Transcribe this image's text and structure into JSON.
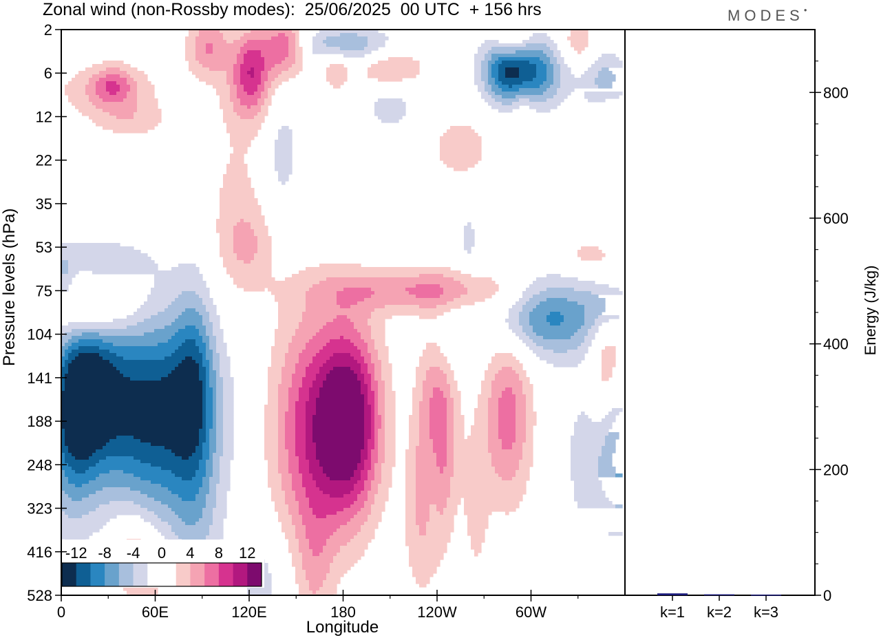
{
  "header": {
    "title": "Zonal wind (non-Rossby modes):  25/06/2025  00 UTC  + 156 hrs",
    "logo": "MODES"
  },
  "chart_data": [
    {
      "type": "heatmap",
      "title": "Zonal wind (non-Rossby modes):  25/06/2025  00 UTC  + 156 hrs",
      "xlabel": "Longitude",
      "ylabel": "Pressure levels (hPa)",
      "x_ticks": [
        "0",
        "60E",
        "120E",
        "180",
        "120W",
        "60W"
      ],
      "x_tick_degrees": [
        0,
        60,
        120,
        180,
        240,
        300
      ],
      "xlim": [
        0,
        360
      ],
      "y_ticks": [
        "2",
        "6",
        "12",
        "22",
        "35",
        "53",
        "75",
        "104",
        "141",
        "188",
        "248",
        "323",
        "416",
        "528"
      ],
      "colorbar": {
        "labels": [
          "-12",
          "-8",
          "-4",
          "0",
          "4",
          "8",
          "12"
        ],
        "levels": [
          -14,
          -12,
          -10,
          -8,
          -6,
          -4,
          -2,
          0,
          2,
          4,
          6,
          8,
          10,
          12,
          14
        ],
        "colors": [
          "#0d2d4f",
          "#0f5f94",
          "#2a86c0",
          "#69a2cc",
          "#a8bfdd",
          "#d3d6e9",
          "#ffffff",
          "#ffffff",
          "#f8cbc9",
          "#f5a3b3",
          "#ed6fa2",
          "#d6338f",
          "#b2187f",
          "#7d0b6e"
        ]
      },
      "features": [
        {
          "kind": "neg",
          "lon": 60,
          "level": 8.8,
          "dlon": 26,
          "dlev": 1.6,
          "amp": 13
        },
        {
          "kind": "neg",
          "lon": 18,
          "level": 8.3,
          "dlon": 15,
          "dlev": 1.3,
          "amp": 11
        },
        {
          "kind": "neg",
          "lon": 6,
          "level": 9.2,
          "dlon": 11,
          "dlev": 1.5,
          "amp": 7
        },
        {
          "kind": "neg",
          "lon": 85,
          "level": 8.0,
          "dlon": 9,
          "dlev": 1.5,
          "amp": 6
        },
        {
          "kind": "neg",
          "lon": 85,
          "level": 11.5,
          "dlon": 12,
          "dlev": 1.6,
          "amp": 3.5
        },
        {
          "kind": "neg",
          "lon": 128,
          "level": 12.7,
          "dlon": 12,
          "dlev": 0.9,
          "amp": 3
        },
        {
          "kind": "neg",
          "lon": 313,
          "level": 6.6,
          "dlon": 25,
          "dlev": 0.65,
          "amp": 8.5
        },
        {
          "kind": "neg",
          "lon": 350,
          "level": 6.3,
          "dlon": 10,
          "dlev": 0.4,
          "amp": 4
        },
        {
          "kind": "neg",
          "lon": 358,
          "level": 9.4,
          "dlon": 9,
          "dlev": 1.3,
          "amp": 7
        },
        {
          "kind": "neg",
          "lon": 297,
          "level": 1.0,
          "dlon": 16,
          "dlev": 0.55,
          "amp": 11
        },
        {
          "kind": "neg",
          "lon": 282,
          "level": 0.9,
          "dlon": 10,
          "dlev": 0.5,
          "amp": 5
        },
        {
          "kind": "neg",
          "lon": 348,
          "level": 1.2,
          "dlon": 10,
          "dlev": 0.5,
          "amp": 5
        },
        {
          "kind": "neg",
          "lon": 182,
          "level": 0.35,
          "dlon": 22,
          "dlev": 0.3,
          "amp": 6
        },
        {
          "kind": "neg",
          "lon": 210,
          "level": 1.7,
          "dlon": 14,
          "dlev": 0.5,
          "amp": 3
        },
        {
          "kind": "neg",
          "lon": 141,
          "level": 2.8,
          "dlon": 8,
          "dlev": 1.1,
          "amp": 3
        },
        {
          "kind": "neg",
          "lon": 22,
          "level": 5.3,
          "dlon": 24,
          "dlev": 0.35,
          "amp": 3
        },
        {
          "kind": "neg",
          "lon": 2,
          "level": 5.9,
          "dlon": 4,
          "dlev": 0.5,
          "amp": 4
        },
        {
          "kind": "neg",
          "lon": 248,
          "level": 7.1,
          "dlon": 10,
          "dlev": 0.6,
          "amp": 2.6
        },
        {
          "kind": "neg",
          "lon": 260,
          "level": 4.8,
          "dlon": 5,
          "dlev": 0.5,
          "amp": 2.6
        },
        {
          "kind": "neg",
          "lon": 237,
          "level": 10.3,
          "dlon": 4,
          "dlev": 1.1,
          "amp": 2.8
        },
        {
          "kind": "neg",
          "lon": 338,
          "level": 9.8,
          "dlon": 12,
          "dlev": 1.4,
          "amp": 3.5
        },
        {
          "kind": "pos",
          "lon": 185,
          "level": 9.0,
          "dlon": 14,
          "dlev": 1.5,
          "amp": 13
        },
        {
          "kind": "pos",
          "lon": 160,
          "level": 9.2,
          "dlon": 18,
          "dlev": 1.9,
          "amp": 9
        },
        {
          "kind": "pos",
          "lon": 240,
          "level": 9.2,
          "dlon": 9,
          "dlev": 1.6,
          "amp": 8
        },
        {
          "kind": "pos",
          "lon": 285,
          "level": 8.9,
          "dlon": 11,
          "dlev": 1.4,
          "amp": 7
        },
        {
          "kind": "pos",
          "lon": 350,
          "level": 7.7,
          "dlon": 9,
          "dlev": 1.2,
          "amp": 6
        },
        {
          "kind": "pos",
          "lon": 15,
          "level": 6.4,
          "dlon": 24,
          "dlev": 0.55,
          "amp": 6.5
        },
        {
          "kind": "pos",
          "lon": 230,
          "level": 6.0,
          "dlon": 45,
          "dlev": 0.35,
          "amp": 6
        },
        {
          "kind": "pos",
          "lon": 335,
          "level": 5.2,
          "dlon": 12,
          "dlev": 0.3,
          "amp": 2.8
        },
        {
          "kind": "pos",
          "lon": 120,
          "level": 5.0,
          "dlon": 12,
          "dlev": 0.6,
          "amp": 2.8
        },
        {
          "kind": "pos",
          "lon": 162,
          "level": 12.4,
          "dlon": 8,
          "dlev": 1.1,
          "amp": 3
        },
        {
          "kind": "pos",
          "lon": 230,
          "level": 11.4,
          "dlon": 9,
          "dlev": 1.3,
          "amp": 3
        },
        {
          "kind": "pos",
          "lon": 55,
          "level": 12.5,
          "dlon": 15,
          "dlev": 0.7,
          "amp": 3.5
        },
        {
          "kind": "pos",
          "lon": 45,
          "level": 11.8,
          "dlon": 9,
          "dlev": 0.6,
          "amp": 3
        },
        {
          "kind": "pos",
          "lon": 95,
          "level": 13.0,
          "dlon": 9,
          "dlev": 0.5,
          "amp": 3
        },
        {
          "kind": "pos",
          "lon": 142,
          "level": 0.4,
          "dlon": 10,
          "dlev": 0.5,
          "amp": 8
        },
        {
          "kind": "pos",
          "lon": 121,
          "level": 0.8,
          "dlon": 8,
          "dlev": 0.6,
          "amp": 7
        },
        {
          "kind": "pos",
          "lon": 94,
          "level": 0.4,
          "dlon": 10,
          "dlev": 0.5,
          "amp": 6
        },
        {
          "kind": "pos",
          "lon": 120,
          "level": 1.5,
          "dlon": 12,
          "dlev": 0.6,
          "amp": 4
        },
        {
          "kind": "pos",
          "lon": 210,
          "level": 0.9,
          "dlon": 16,
          "dlev": 0.35,
          "amp": 5
        },
        {
          "kind": "pos",
          "lon": 175,
          "level": 0.9,
          "dlon": 6,
          "dlev": 0.35,
          "amp": 4
        },
        {
          "kind": "pos",
          "lon": 288,
          "level": 0.2,
          "dlon": 8,
          "dlev": 0.35,
          "amp": 5
        },
        {
          "kind": "pos",
          "lon": 330,
          "level": 0.3,
          "dlon": 8,
          "dlev": 0.35,
          "amp": 4
        },
        {
          "kind": "pos",
          "lon": 30,
          "level": 1.4,
          "dlon": 24,
          "dlev": 0.45,
          "amp": 3.8
        },
        {
          "kind": "pos",
          "lon": 33,
          "level": 1.3,
          "dlon": 9,
          "dlev": 0.3,
          "amp": 5
        },
        {
          "kind": "pos",
          "lon": 45,
          "level": 2.1,
          "dlon": 17,
          "dlev": 0.3,
          "amp": 2.8
        },
        {
          "kind": "pos",
          "lon": 255,
          "level": 2.7,
          "dlon": 16,
          "dlev": 0.6,
          "amp": 3
        },
        {
          "kind": "pos",
          "lon": 295,
          "level": 1.8,
          "dlon": 6,
          "dlev": 0.6,
          "amp": 2.8
        },
        {
          "kind": "pos",
          "lon": 350,
          "level": 2.1,
          "dlon": 6,
          "dlev": 0.5,
          "amp": 2.6
        },
        {
          "kind": "pos",
          "lon": 112,
          "level": 4.1,
          "dlon": 14,
          "dlev": 1.5,
          "amp": 2.6
        },
        {
          "kind": "pos",
          "lon": 265,
          "level": 11.0,
          "dlon": 6,
          "dlev": 1.3,
          "amp": 2.6
        }
      ]
    },
    {
      "type": "bar",
      "categories": [
        "k=1",
        "k=2",
        "k=3"
      ],
      "values": [
        3,
        1.5,
        1
      ],
      "ylabel": "Energy (J/kg)",
      "ylim": [
        0,
        900
      ],
      "y_ticks": [
        "0",
        "200",
        "400",
        "600",
        "800"
      ],
      "bar_color": "#1a1a7a"
    }
  ]
}
